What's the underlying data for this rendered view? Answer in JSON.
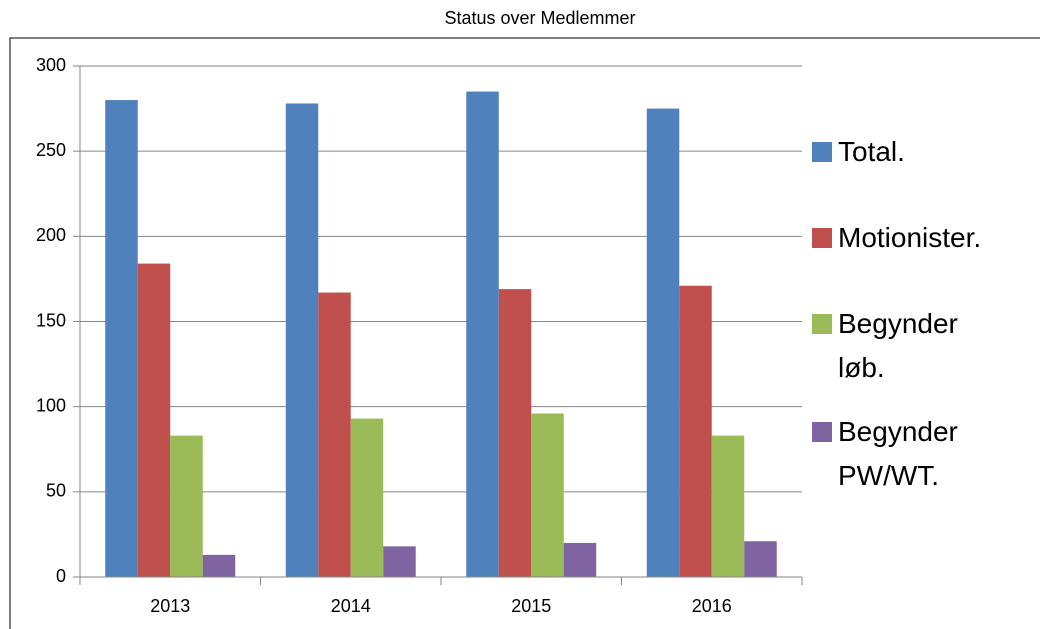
{
  "chart_data": {
    "type": "bar",
    "title": "Status over Medlemmer",
    "categories": [
      "2013",
      "2014",
      "2015",
      "2016"
    ],
    "series": [
      {
        "name": "Total.",
        "color": "#4f81bd",
        "values": [
          280,
          278,
          285,
          275
        ]
      },
      {
        "name": "Motionister.",
        "color": "#c0504d",
        "values": [
          184,
          167,
          169,
          171
        ]
      },
      {
        "name": "Begynder løb.",
        "color": "#9bbb59",
        "values": [
          83,
          93,
          96,
          83
        ]
      },
      {
        "name": "Begynder PW/WT.",
        "color": "#8064a2",
        "values": [
          13,
          18,
          20,
          21
        ]
      }
    ],
    "ylim": [
      0,
      300
    ],
    "yticks": [
      0,
      50,
      100,
      150,
      200,
      250,
      300
    ],
    "grid": true,
    "legend": "right"
  }
}
